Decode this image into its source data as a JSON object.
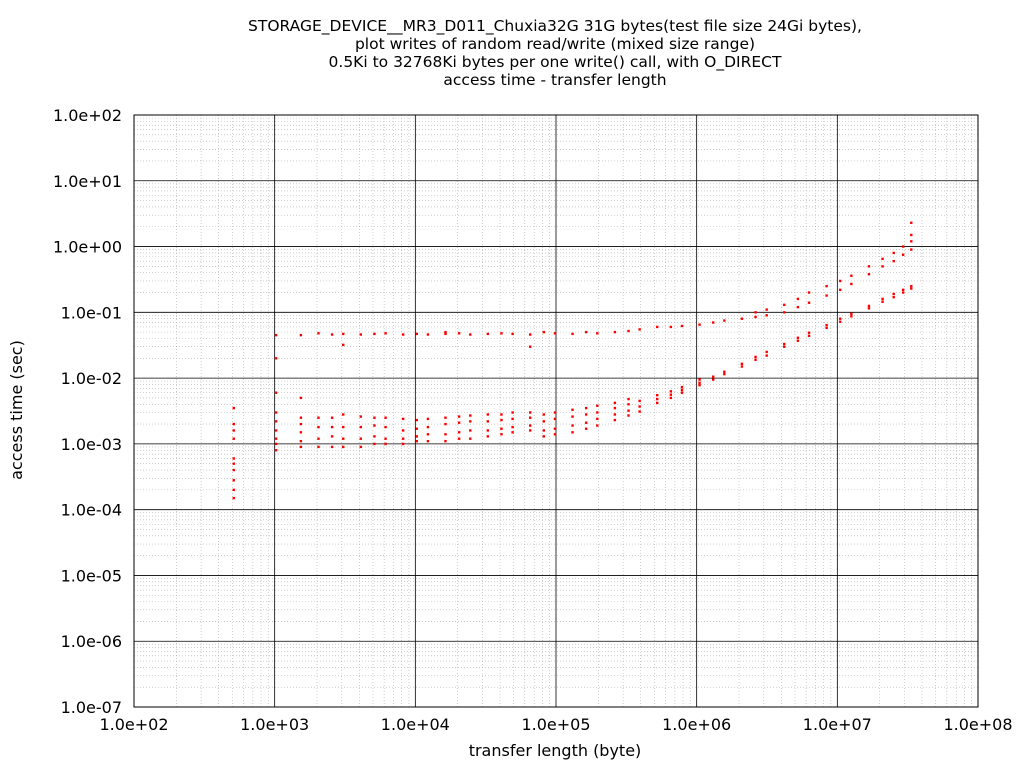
{
  "chart_data": {
    "type": "scatter",
    "title": [
      "STORAGE_DEVICE__MR3_D011_Chuxia32G 31G bytes(test file size 24Gi bytes),",
      "plot writes of random read/write (mixed size range)",
      "0.5Ki to 32768Ki bytes per one write() call, with O_DIRECT",
      "access time - transfer length"
    ],
    "xlabel": "transfer length (byte)",
    "ylabel": "access time (sec)",
    "xscale": "log",
    "yscale": "log",
    "xlim": [
      100,
      100000000
    ],
    "ylim": [
      1e-07,
      100
    ],
    "xticks": [
      "1.0e+02",
      "1.0e+03",
      "1.0e+04",
      "1.0e+05",
      "1.0e+06",
      "1.0e+07",
      "1.0e+08"
    ],
    "yticks": [
      "1.0e+02",
      "1.0e+01",
      "1.0e+00",
      "1.0e-01",
      "1.0e-02",
      "1.0e-03",
      "1.0e-04",
      "1.0e-05",
      "1.0e-06",
      "1.0e-07"
    ],
    "grid": true,
    "marker_color": "#ff0000",
    "series": [
      {
        "points": [
          [
            512,
            0.00015
          ],
          [
            512,
            0.0002
          ],
          [
            512,
            0.00028
          ],
          [
            512,
            0.0004
          ],
          [
            512,
            0.0005
          ],
          [
            512,
            0.0006
          ],
          [
            512,
            0.0012
          ],
          [
            512,
            0.0016
          ],
          [
            512,
            0.002
          ],
          [
            512,
            0.0035
          ],
          [
            1024,
            0.0008
          ],
          [
            1024,
            0.001
          ],
          [
            1024,
            0.0012
          ],
          [
            1024,
            0.0016
          ],
          [
            1024,
            0.0022
          ],
          [
            1024,
            0.003
          ],
          [
            1024,
            0.006
          ],
          [
            1024,
            0.02
          ],
          [
            1024,
            0.045
          ],
          [
            1536,
            0.0009
          ],
          [
            1536,
            0.0011
          ],
          [
            1536,
            0.0015
          ],
          [
            1536,
            0.002
          ],
          [
            1536,
            0.0025
          ],
          [
            1536,
            0.005
          ],
          [
            1536,
            0.045
          ],
          [
            2048,
            0.0009
          ],
          [
            2048,
            0.0012
          ],
          [
            2048,
            0.0018
          ],
          [
            2048,
            0.0025
          ],
          [
            2048,
            0.048
          ],
          [
            2560,
            0.0009
          ],
          [
            2560,
            0.0013
          ],
          [
            2560,
            0.0018
          ],
          [
            2560,
            0.0025
          ],
          [
            2560,
            0.046
          ],
          [
            3072,
            0.0009
          ],
          [
            3072,
            0.0012
          ],
          [
            3072,
            0.0018
          ],
          [
            3072,
            0.0028
          ],
          [
            3072,
            0.032
          ],
          [
            3072,
            0.047
          ],
          [
            4096,
            0.0009
          ],
          [
            4096,
            0.0012
          ],
          [
            4096,
            0.0018
          ],
          [
            4096,
            0.0026
          ],
          [
            4096,
            0.046
          ],
          [
            5120,
            0.001
          ],
          [
            5120,
            0.0013
          ],
          [
            5120,
            0.0019
          ],
          [
            5120,
            0.0025
          ],
          [
            5120,
            0.047
          ],
          [
            6144,
            0.001
          ],
          [
            6144,
            0.0012
          ],
          [
            6144,
            0.0018
          ],
          [
            6144,
            0.0025
          ],
          [
            6144,
            0.048
          ],
          [
            8192,
            0.001
          ],
          [
            8192,
            0.0012
          ],
          [
            8192,
            0.0016
          ],
          [
            8192,
            0.0024
          ],
          [
            8192,
            0.046
          ],
          [
            10240,
            0.0011
          ],
          [
            10240,
            0.0013
          ],
          [
            10240,
            0.0017
          ],
          [
            10240,
            0.0023
          ],
          [
            10240,
            0.047
          ],
          [
            12288,
            0.0011
          ],
          [
            12288,
            0.0014
          ],
          [
            12288,
            0.0018
          ],
          [
            12288,
            0.0024
          ],
          [
            12288,
            0.046
          ],
          [
            16384,
            0.0011
          ],
          [
            16384,
            0.0014
          ],
          [
            16384,
            0.002
          ],
          [
            16384,
            0.0025
          ],
          [
            16384,
            0.047
          ],
          [
            16384,
            0.05
          ],
          [
            20480,
            0.0012
          ],
          [
            20480,
            0.0015
          ],
          [
            20480,
            0.0021
          ],
          [
            20480,
            0.0026
          ],
          [
            20480,
            0.048
          ],
          [
            24576,
            0.0012
          ],
          [
            24576,
            0.0016
          ],
          [
            24576,
            0.0022
          ],
          [
            24576,
            0.0027
          ],
          [
            24576,
            0.046
          ],
          [
            32768,
            0.0013
          ],
          [
            32768,
            0.0016
          ],
          [
            32768,
            0.0022
          ],
          [
            32768,
            0.0028
          ],
          [
            32768,
            0.047
          ],
          [
            40960,
            0.0014
          ],
          [
            40960,
            0.0017
          ],
          [
            40960,
            0.0023
          ],
          [
            40960,
            0.0028
          ],
          [
            40960,
            0.048
          ],
          [
            49152,
            0.0015
          ],
          [
            49152,
            0.0018
          ],
          [
            49152,
            0.0024
          ],
          [
            49152,
            0.003
          ],
          [
            49152,
            0.047
          ],
          [
            65536,
            0.0016
          ],
          [
            65536,
            0.0019
          ],
          [
            65536,
            0.0025
          ],
          [
            65536,
            0.003
          ],
          [
            65536,
            0.046
          ],
          [
            65536,
            0.03
          ],
          [
            81920,
            0.0013
          ],
          [
            81920,
            0.0016
          ],
          [
            81920,
            0.0022
          ],
          [
            81920,
            0.0028
          ],
          [
            81920,
            0.05
          ],
          [
            98304,
            0.0014
          ],
          [
            98304,
            0.0017
          ],
          [
            98304,
            0.0024
          ],
          [
            98304,
            0.003
          ],
          [
            98304,
            0.048
          ],
          [
            131072,
            0.0015
          ],
          [
            131072,
            0.0019
          ],
          [
            131072,
            0.0026
          ],
          [
            131072,
            0.0033
          ],
          [
            131072,
            0.047
          ],
          [
            163840,
            0.0017
          ],
          [
            163840,
            0.0021
          ],
          [
            163840,
            0.0028
          ],
          [
            163840,
            0.0035
          ],
          [
            163840,
            0.05
          ],
          [
            196608,
            0.0019
          ],
          [
            196608,
            0.0024
          ],
          [
            196608,
            0.003
          ],
          [
            196608,
            0.0038
          ],
          [
            196608,
            0.048
          ],
          [
            262144,
            0.0023
          ],
          [
            262144,
            0.0028
          ],
          [
            262144,
            0.0035
          ],
          [
            262144,
            0.0042
          ],
          [
            262144,
            0.05
          ],
          [
            327680,
            0.0027
          ],
          [
            327680,
            0.0032
          ],
          [
            327680,
            0.004
          ],
          [
            327680,
            0.0048
          ],
          [
            327680,
            0.052
          ],
          [
            393216,
            0.0031
          ],
          [
            393216,
            0.0037
          ],
          [
            393216,
            0.0045
          ],
          [
            393216,
            0.055
          ],
          [
            524288,
            0.0042
          ],
          [
            524288,
            0.0048
          ],
          [
            524288,
            0.0055
          ],
          [
            524288,
            0.06
          ],
          [
            655360,
            0.005
          ],
          [
            655360,
            0.0056
          ],
          [
            655360,
            0.0063
          ],
          [
            655360,
            0.06
          ],
          [
            786432,
            0.006
          ],
          [
            786432,
            0.0066
          ],
          [
            786432,
            0.0073
          ],
          [
            786432,
            0.062
          ],
          [
            1048576,
            0.0078
          ],
          [
            1048576,
            0.0085
          ],
          [
            1048576,
            0.0095
          ],
          [
            1048576,
            0.065
          ],
          [
            1310720,
            0.0095
          ],
          [
            1310720,
            0.0105
          ],
          [
            1310720,
            0.07
          ],
          [
            1572864,
            0.0115
          ],
          [
            1572864,
            0.0125
          ],
          [
            1572864,
            0.075
          ],
          [
            2097152,
            0.015
          ],
          [
            2097152,
            0.0165
          ],
          [
            2097152,
            0.08
          ],
          [
            2621440,
            0.019
          ],
          [
            2621440,
            0.021
          ],
          [
            2621440,
            0.085
          ],
          [
            2621440,
            0.1
          ],
          [
            3145728,
            0.022
          ],
          [
            3145728,
            0.025
          ],
          [
            3145728,
            0.09
          ],
          [
            3145728,
            0.11
          ],
          [
            4194304,
            0.03
          ],
          [
            4194304,
            0.033
          ],
          [
            4194304,
            0.1
          ],
          [
            4194304,
            0.13
          ],
          [
            5242880,
            0.037
          ],
          [
            5242880,
            0.041
          ],
          [
            5242880,
            0.12
          ],
          [
            5242880,
            0.16
          ],
          [
            6291456,
            0.044
          ],
          [
            6291456,
            0.049
          ],
          [
            6291456,
            0.14
          ],
          [
            6291456,
            0.2
          ],
          [
            8388608,
            0.058
          ],
          [
            8388608,
            0.064
          ],
          [
            8388608,
            0.18
          ],
          [
            8388608,
            0.25
          ],
          [
            10485760,
            0.072
          ],
          [
            10485760,
            0.08
          ],
          [
            10485760,
            0.22
          ],
          [
            10485760,
            0.3
          ],
          [
            12582912,
            0.087
          ],
          [
            12582912,
            0.095
          ],
          [
            12582912,
            0.27
          ],
          [
            12582912,
            0.36
          ],
          [
            16777216,
            0.115
          ],
          [
            16777216,
            0.125
          ],
          [
            16777216,
            0.38
          ],
          [
            16777216,
            0.5
          ],
          [
            20971520,
            0.145
          ],
          [
            20971520,
            0.16
          ],
          [
            20971520,
            0.5
          ],
          [
            20971520,
            0.65
          ],
          [
            25165824,
            0.17
          ],
          [
            25165824,
            0.19
          ],
          [
            25165824,
            0.6
          ],
          [
            25165824,
            0.8
          ],
          [
            29360128,
            0.2
          ],
          [
            29360128,
            0.22
          ],
          [
            29360128,
            0.75
          ],
          [
            29360128,
            1.0
          ],
          [
            33554432,
            0.23
          ],
          [
            33554432,
            0.25
          ],
          [
            33554432,
            0.9
          ],
          [
            33554432,
            1.2
          ],
          [
            33554432,
            1.5
          ],
          [
            33554432,
            2.3
          ]
        ]
      }
    ]
  }
}
